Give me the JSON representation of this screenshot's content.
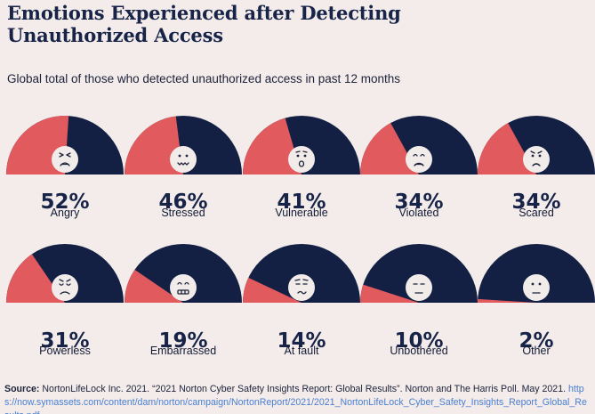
{
  "title_line1": "Emotions Experienced after Detecting",
  "title_line2": "Unauthorized Access",
  "subtitle": "Global total of those who detected unauthorized access in past 12 months",
  "colors": {
    "fill": "#e05a5e",
    "remainder": "#132043",
    "face": "#f1ebea",
    "face_ink": "#1c2238"
  },
  "chart_data": {
    "type": "gauge",
    "title": "Emotions Experienced after Detecting Unauthorized Access",
    "subtitle": "Global total of those who detected unauthorized access in past 12 months",
    "unit": "%",
    "categories": [
      "Angry",
      "Stressed",
      "Vulnerable",
      "Violated",
      "Scared",
      "Powerless",
      "Embarrassed",
      "At fault",
      "Unbothered",
      "Other"
    ],
    "values": [
      52,
      46,
      41,
      34,
      34,
      31,
      19,
      14,
      10,
      2
    ],
    "labels": [
      "52%",
      "46%",
      "41%",
      "34%",
      "34%",
      "31%",
      "19%",
      "14%",
      "10%",
      "2%"
    ],
    "faces": [
      "angry-face-icon",
      "stressed-face-icon",
      "vulnerable-face-icon",
      "violated-face-icon",
      "scared-face-icon",
      "powerless-face-icon",
      "embarrassed-face-icon",
      "at-fault-face-icon",
      "unbothered-face-icon",
      "other-face-icon"
    ]
  },
  "source": {
    "label": "Source:",
    "text": " NortonLifeLock Inc. 2021. “2021 Norton Cyber Safety Insights Report: Global Results”. Norton and The Harris Poll. May 2021. ",
    "link": "https://now.symassets.com/content/dam/norton/campaign/NortonReport/2021/2021_NortonLifeLock_Cyber_Safety_Insights_Report_Global_Results.pdf"
  }
}
